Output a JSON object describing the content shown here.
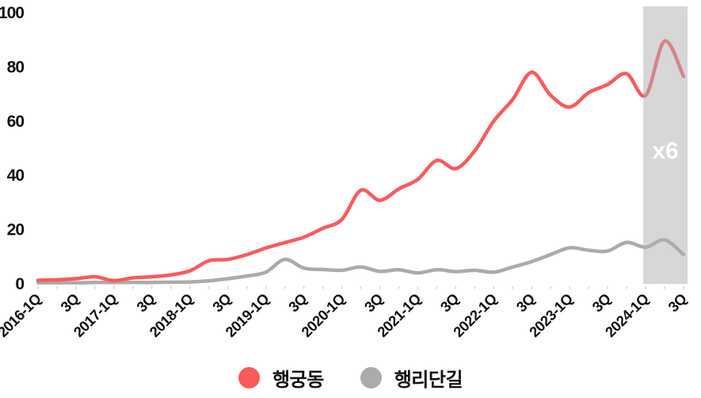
{
  "chart_data": {
    "type": "line",
    "title": "",
    "xlabel": "",
    "ylabel": "",
    "ylim": [
      0,
      100
    ],
    "yticks": [
      0,
      20,
      40,
      60,
      80,
      100
    ],
    "grid": false,
    "legend_position": "bottom",
    "x_tick_every": 2,
    "x_tick_labels": [
      "2016-1Q",
      "3Q",
      "2017-1Q",
      "3Q",
      "2018-1Q",
      "3Q",
      "2019-1Q",
      "3Q",
      "2020-1Q",
      "3Q",
      "2021-1Q",
      "3Q",
      "2022-1Q",
      "3Q",
      "2023-1Q",
      "3Q",
      "2024-1Q",
      "3Q"
    ],
    "n_points": 35,
    "series": [
      {
        "name": "행궁동",
        "color": "#fb5a5a",
        "values": [
          1.3,
          1.5,
          1.9,
          2.6,
          1.2,
          2.2,
          2.6,
          3.3,
          4.8,
          8.5,
          9.0,
          10.8,
          13.2,
          15.2,
          17.2,
          20.5,
          23.7,
          34.5,
          30.8,
          35.0,
          38.5,
          45.5,
          42.5,
          49.0,
          60.0,
          68.0,
          78.0,
          69.5,
          65.2,
          70.5,
          73.5,
          77.5,
          69.5,
          89.5,
          76.5
        ]
      },
      {
        "name": "행리단길",
        "color": "#ababab",
        "values": [
          0.4,
          0.4,
          0.4,
          0.5,
          0.5,
          0.5,
          0.5,
          0.6,
          0.7,
          1.1,
          1.9,
          2.9,
          4.3,
          9.0,
          5.8,
          5.3,
          5.0,
          6.2,
          4.6,
          5.2,
          4.0,
          5.2,
          4.5,
          5.0,
          4.3,
          6.2,
          8.2,
          10.8,
          13.3,
          12.4,
          12.1,
          15.3,
          13.5,
          16.2,
          10.8
        ]
      }
    ],
    "highlight": {
      "label": "x6",
      "start": "2024-1Q",
      "end": "2024-3Q",
      "start_index": 32,
      "end_index": 34,
      "fill": "#b0b0b0",
      "opacity": 0.5,
      "text_color": "#ffffff"
    },
    "axis_text_color": "#111111",
    "tick_color": "#d4d4d4"
  }
}
